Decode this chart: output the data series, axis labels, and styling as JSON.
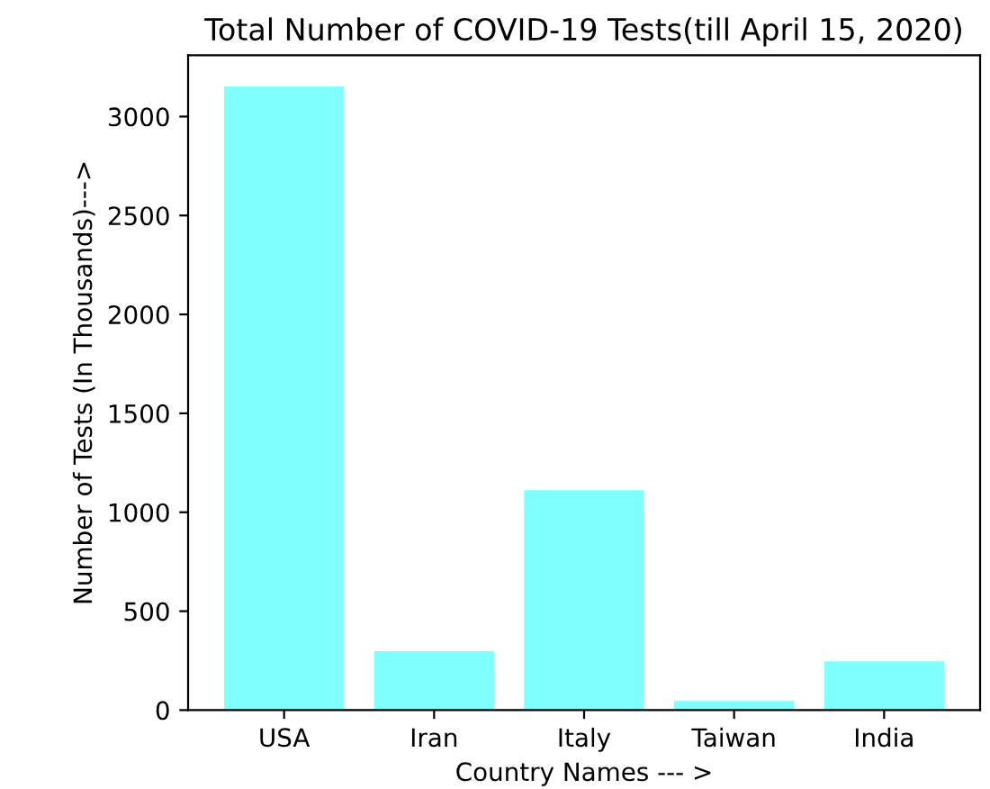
{
  "chart_data": {
    "type": "bar",
    "title": "Total Number of COVID-19 Tests(till April 15, 2020)",
    "xlabel": "Country Names --- >",
    "ylabel": "Number of Tests (In Thousands)--->",
    "categories": [
      "USA",
      "Iran",
      "Italy",
      "Taiwan",
      "India"
    ],
    "values": [
      3152,
      298,
      1111,
      46,
      246
    ],
    "color": "#80ffff",
    "ylim": [
      0,
      3310
    ],
    "yticks": [
      0,
      500,
      1000,
      1500,
      2000,
      2500,
      3000
    ],
    "grid": false,
    "legend": false
  }
}
